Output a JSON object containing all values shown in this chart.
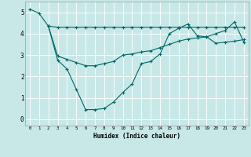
{
  "xlabel": "Humidex (Indice chaleur)",
  "background_color": "#c8e8e8",
  "grid_color": "#b8d0d0",
  "line_color": "#006666",
  "xlim": [
    -0.5,
    23.5
  ],
  "ylim": [
    -0.3,
    5.5
  ],
  "yticks": [
    0,
    1,
    2,
    3,
    4,
    5
  ],
  "xticks": [
    0,
    1,
    2,
    3,
    4,
    5,
    6,
    7,
    8,
    9,
    10,
    11,
    12,
    13,
    14,
    15,
    16,
    17,
    18,
    19,
    20,
    21,
    22,
    23
  ],
  "line1_x": [
    0,
    1,
    2,
    3,
    4,
    5,
    6,
    7,
    8,
    9,
    10,
    11,
    12,
    13,
    14,
    15,
    16,
    17,
    18,
    19,
    20,
    21,
    22,
    23
  ],
  "line1_y": [
    5.15,
    4.95,
    4.35,
    4.3,
    4.3,
    4.3,
    4.3,
    4.3,
    4.3,
    4.3,
    4.3,
    4.3,
    4.3,
    4.3,
    4.3,
    4.3,
    4.3,
    4.3,
    4.3,
    4.3,
    4.3,
    4.3,
    4.3,
    4.3
  ],
  "line2_x": [
    2,
    3,
    4,
    5,
    6,
    7,
    8,
    9,
    10,
    11,
    12,
    13,
    14,
    15,
    16,
    17,
    18,
    19,
    20,
    21,
    22,
    23
  ],
  "line2_y": [
    4.35,
    2.75,
    2.35,
    1.4,
    0.45,
    0.45,
    0.5,
    0.8,
    1.25,
    1.65,
    2.6,
    2.7,
    3.05,
    4.0,
    4.25,
    4.45,
    3.9,
    3.85,
    4.0,
    4.15,
    4.55,
    3.6
  ],
  "line3_x": [
    2,
    3,
    4,
    5,
    6,
    7,
    8,
    9,
    10,
    11,
    12,
    13,
    14,
    15,
    16,
    17,
    18,
    19,
    20,
    21,
    22,
    23
  ],
  "line3_y": [
    4.35,
    2.95,
    2.8,
    2.65,
    2.5,
    2.5,
    2.6,
    2.7,
    3.0,
    3.05,
    3.15,
    3.2,
    3.35,
    3.5,
    3.65,
    3.75,
    3.8,
    3.85,
    3.55,
    3.6,
    3.65,
    3.72
  ]
}
